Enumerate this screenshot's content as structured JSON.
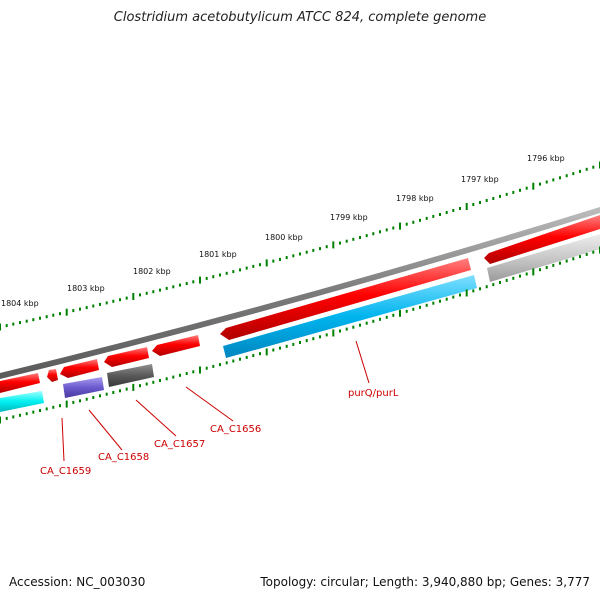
{
  "title": "Clostridium acetobutylicum ATCC 824, complete genome",
  "accession": "Accession: NC_003030",
  "summary": "Topology: circular; Length: 3,940,880 bp; Genes: 3,777",
  "colors": {
    "backbone": "#7f7f7f",
    "forward_gene": "#ff0000",
    "reverse_cds": "#00bfff",
    "cyan_cds": "#00ffff",
    "purple_cds": "#6a5acd",
    "dark_cds": "#555555",
    "light_cds": "#c0c0c0",
    "tick": "#008000",
    "label": "#cc0000"
  },
  "scale_labels": [
    "1796 kbp",
    "1797 kbp",
    "1798 kbp",
    "1799 kbp",
    "1800 kbp",
    "1801 kbp",
    "1802 kbp",
    "1803 kbp",
    "1804 kbp"
  ],
  "gene_labels": [
    "purQ/purL",
    "CA_C1656",
    "CA_C1657",
    "CA_C1658",
    "CA_C1659"
  ]
}
